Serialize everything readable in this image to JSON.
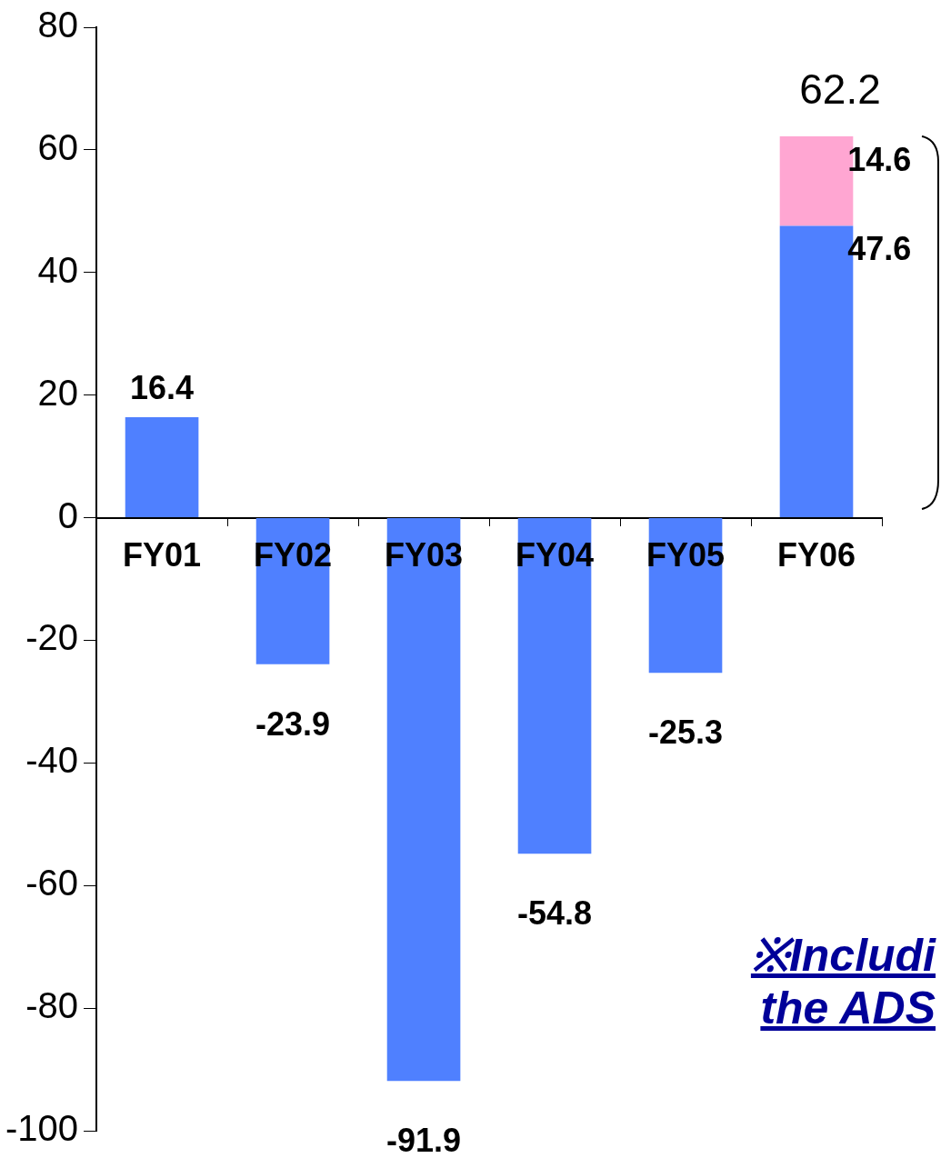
{
  "chart_data": {
    "type": "bar",
    "stacked": true,
    "categories": [
      "FY01",
      "FY02",
      "FY03",
      "FY04",
      "FY05",
      "FY06"
    ],
    "series": [
      {
        "color": "#4f80ff",
        "values": [
          16.4,
          -23.9,
          -91.9,
          -54.8,
          -25.3,
          47.6
        ],
        "value_labels": [
          "16.4",
          "-23.9",
          "-91.9",
          "-54.8",
          "-25.3",
          "47.6"
        ]
      },
      {
        "color": "#ffa6d2",
        "values": [
          null,
          null,
          null,
          null,
          null,
          14.6
        ],
        "value_labels": [
          null,
          null,
          null,
          null,
          null,
          "14.6"
        ]
      }
    ],
    "totals": [
      null,
      null,
      null,
      null,
      null,
      "62.2"
    ],
    "ylim": [
      -100,
      80
    ],
    "yticks": [
      -100,
      -80,
      -60,
      -40,
      -20,
      0,
      20,
      40,
      60,
      80
    ],
    "annotations": [
      "※Includi",
      "the ADS"
    ]
  }
}
